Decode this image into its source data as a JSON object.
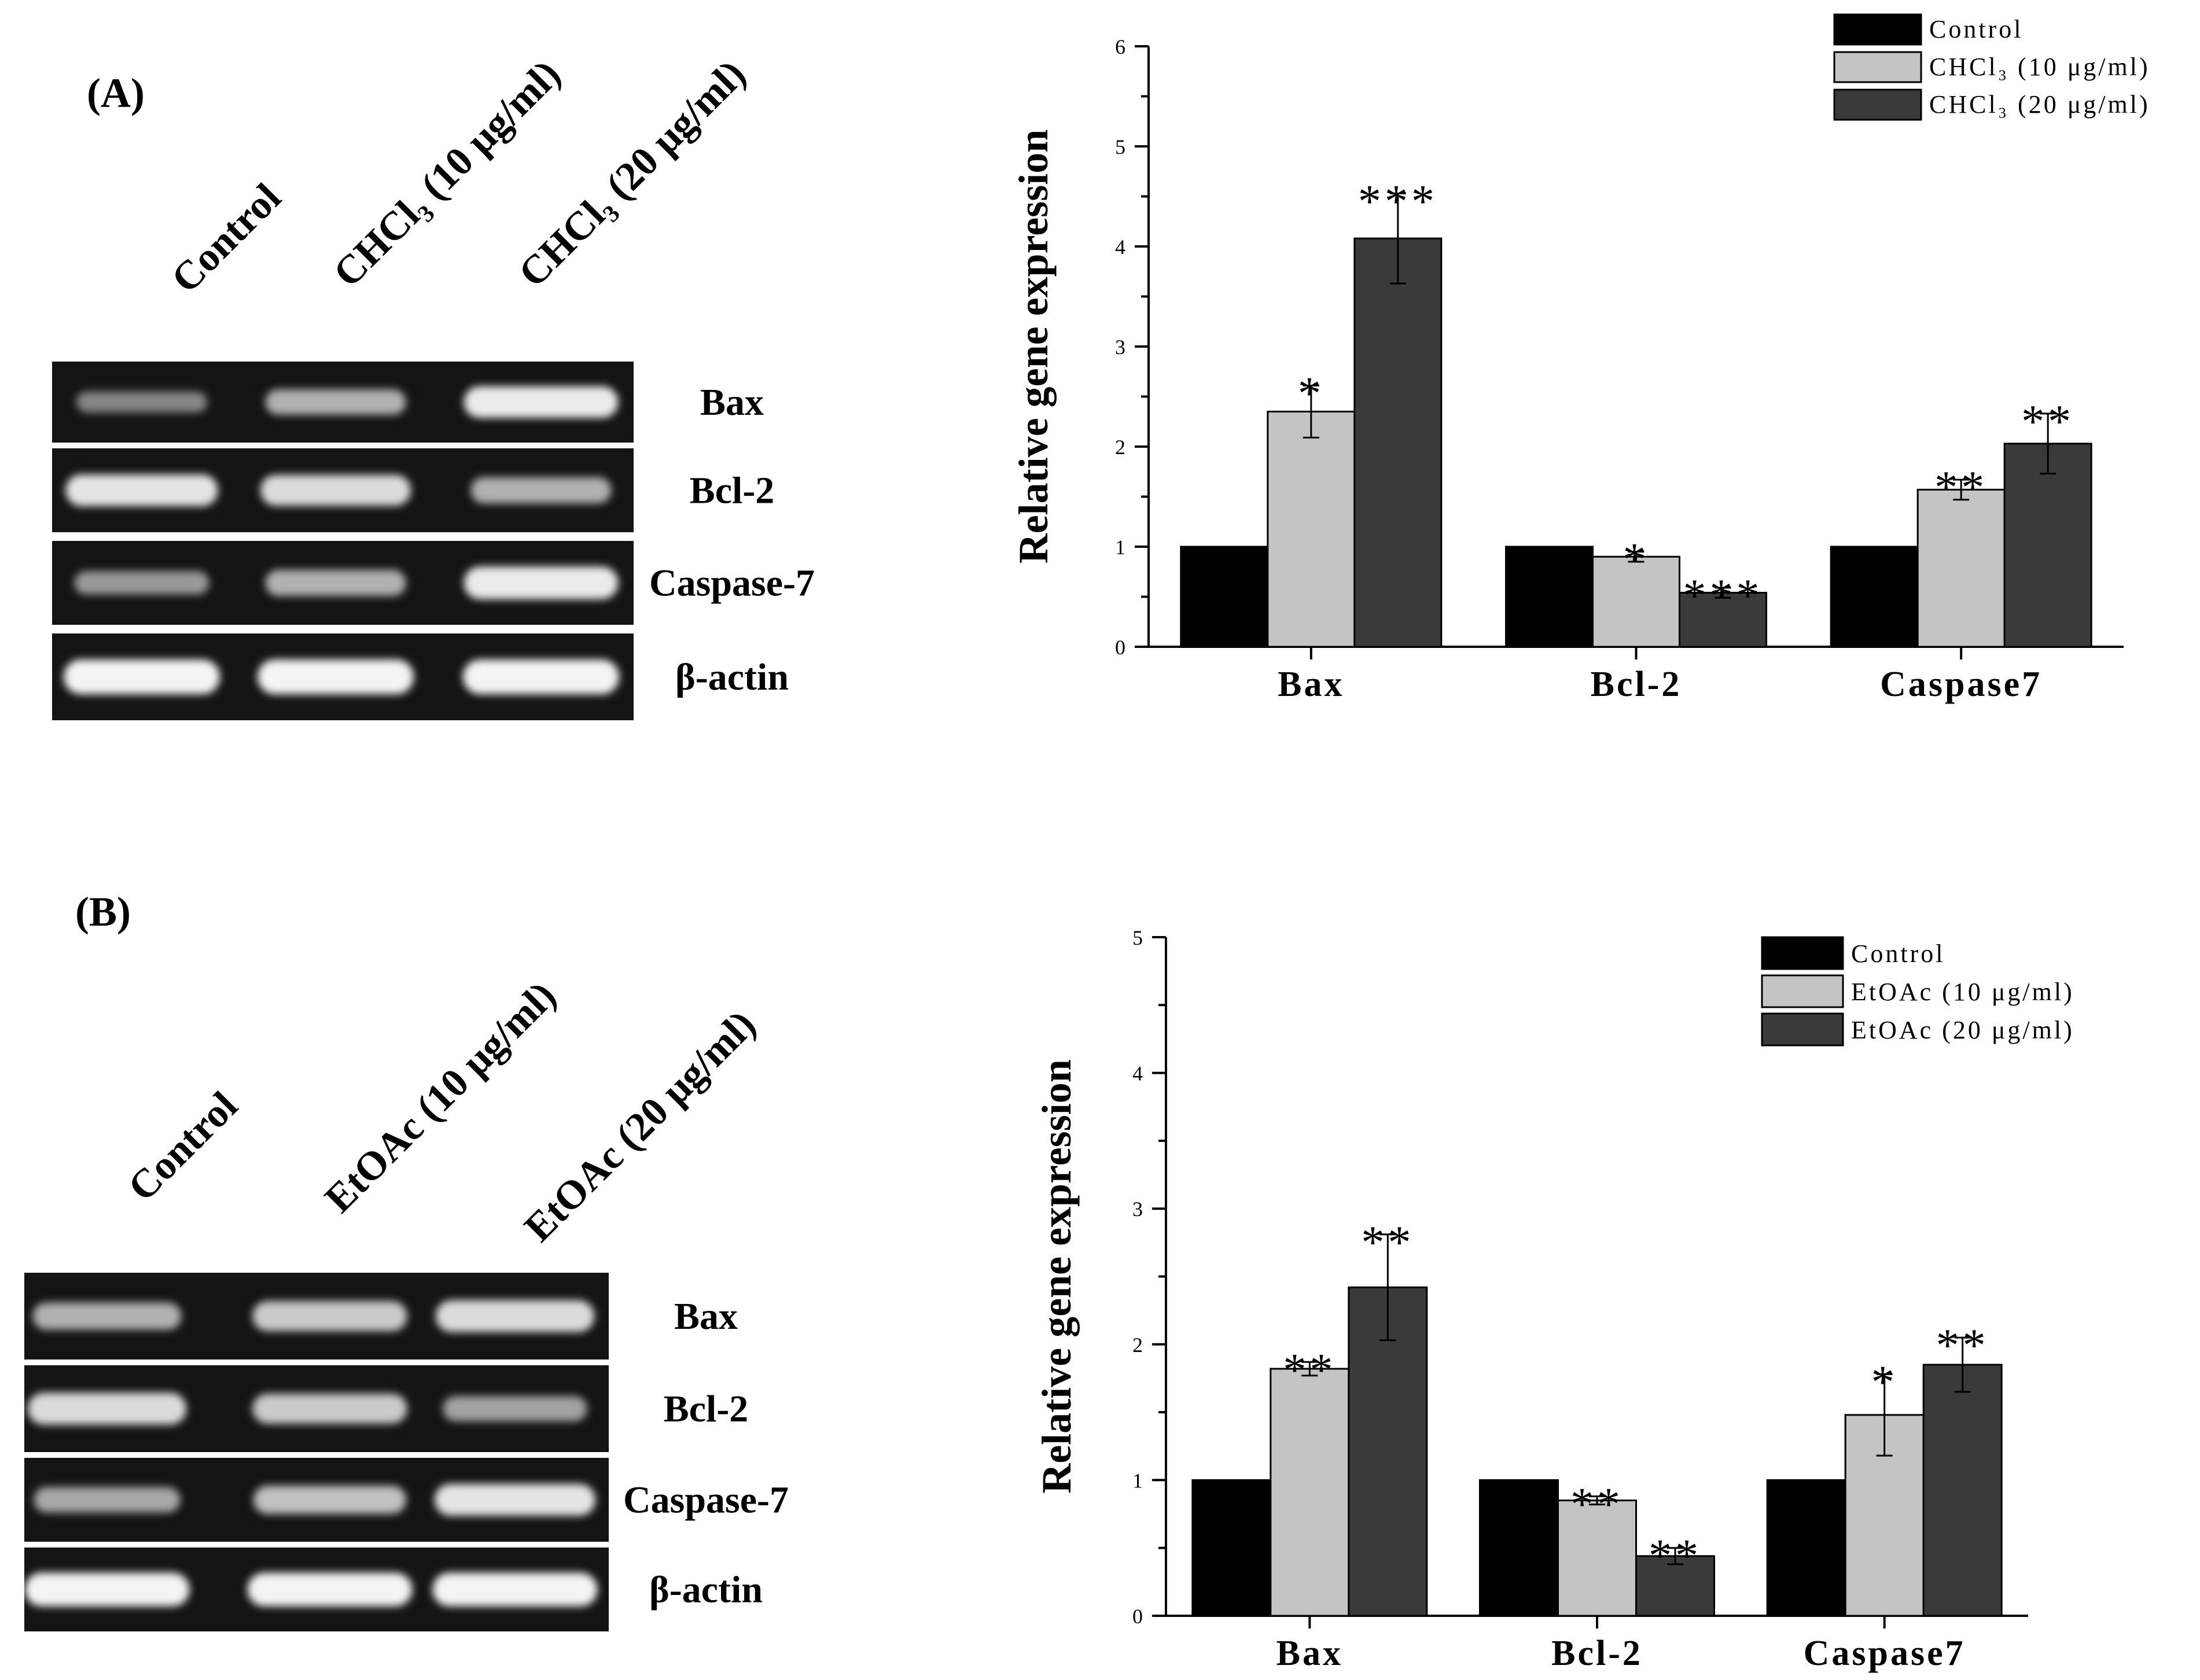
{
  "colors": {
    "control": "#000000",
    "low_dose": "#c4c4c4",
    "high_dose": "#3a3a3a",
    "gel_background": "#141414",
    "band": "#f4f4f4"
  },
  "panel_a": {
    "label": "(A)",
    "lane_labels": [
      "Control",
      "CHCl₃ (10 μg/ml)",
      "CHCl₃ (20 μg/ml)"
    ],
    "gel_rows": [
      {
        "name": "Bax",
        "intensities": [
          0.35,
          0.6,
          0.95
        ]
      },
      {
        "name": "Bcl-2",
        "intensities": [
          0.9,
          0.85,
          0.6
        ]
      },
      {
        "name": "Caspase-7",
        "intensities": [
          0.45,
          0.6,
          0.95
        ]
      },
      {
        "name": "β-actin",
        "intensities": [
          1.0,
          1.0,
          1.0
        ]
      }
    ]
  },
  "panel_b": {
    "label": "(B)",
    "lane_labels": [
      "Control",
      "EtOAc (10 μg/ml)",
      "EtOAc (20 μg/ml)"
    ],
    "gel_rows": [
      {
        "name": "Bax",
        "intensities": [
          0.6,
          0.75,
          0.85
        ]
      },
      {
        "name": "Bcl-2",
        "intensities": [
          0.85,
          0.75,
          0.5
        ]
      },
      {
        "name": "Caspase-7",
        "intensities": [
          0.55,
          0.7,
          0.9
        ]
      },
      {
        "name": "β-actin",
        "intensities": [
          1.0,
          1.0,
          1.0
        ]
      }
    ]
  },
  "chart_data": [
    {
      "type": "bar",
      "title": "",
      "xlabel": "",
      "ylabel": "Relative gene expression",
      "categories": [
        "Bax",
        "Bcl-2",
        "Caspase7"
      ],
      "ylim": [
        0,
        6
      ],
      "yticks": [
        0,
        1,
        2,
        3,
        4,
        5,
        6
      ],
      "legend_position": "top-right",
      "series": [
        {
          "name": "Control",
          "values": [
            1.0,
            1.0,
            1.0
          ],
          "errors": [
            0,
            0,
            0
          ],
          "significance": [
            "",
            "",
            ""
          ]
        },
        {
          "name": "CHCl₃ (10 μg/ml)",
          "values": [
            2.35,
            0.9,
            1.57
          ],
          "errors": [
            0.26,
            0.05,
            0.1
          ],
          "significance": [
            "*",
            "*",
            "**"
          ]
        },
        {
          "name": "CHCl₃ (20 μg/ml)",
          "values": [
            4.08,
            0.54,
            2.03
          ],
          "errors": [
            0.45,
            0.05,
            0.3
          ],
          "significance": [
            "***",
            "***",
            "**"
          ]
        }
      ]
    },
    {
      "type": "bar",
      "title": "",
      "xlabel": "",
      "ylabel": "Relative gene expression",
      "categories": [
        "Bax",
        "Bcl-2",
        "Caspase7"
      ],
      "ylim": [
        0,
        5
      ],
      "yticks": [
        0,
        1,
        2,
        3,
        4,
        5
      ],
      "legend_position": "top-right",
      "series": [
        {
          "name": "Control",
          "values": [
            1.0,
            1.0,
            1.0
          ],
          "errors": [
            0,
            0,
            0
          ],
          "significance": [
            "",
            "",
            ""
          ]
        },
        {
          "name": "EtOAc (10 μg/ml)",
          "values": [
            1.82,
            0.85,
            1.48
          ],
          "errors": [
            0.05,
            0.03,
            0.3
          ],
          "significance": [
            "**",
            "**",
            "*"
          ]
        },
        {
          "name": "EtOAc (20 μg/ml)",
          "values": [
            2.42,
            0.44,
            1.85
          ],
          "errors": [
            0.39,
            0.06,
            0.2
          ],
          "significance": [
            "**",
            "**",
            "**"
          ]
        }
      ]
    }
  ]
}
